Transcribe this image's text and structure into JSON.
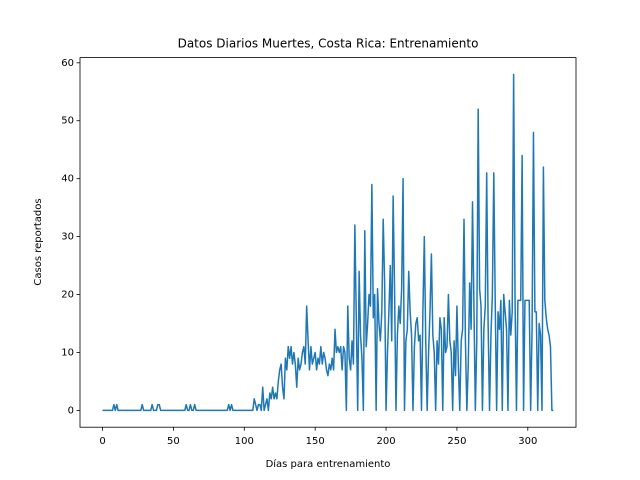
{
  "chart_data": {
    "type": "line",
    "title": "Datos Diarios Muertes, Costa Rica: Entrenamiento",
    "x_label": "Días para entrenamiento",
    "y_label": "Casos reportados",
    "color": "#1f77b4",
    "xlim": [
      -15.9,
      334.0
    ],
    "ylim": [
      -2.9,
      60.9
    ],
    "xticks": [
      0,
      50,
      100,
      150,
      200,
      250,
      300
    ],
    "yticks": [
      0,
      10,
      20,
      30,
      40,
      50,
      60
    ],
    "x": [
      0,
      1,
      2,
      3,
      4,
      5,
      6,
      7,
      8,
      9,
      10,
      11,
      12,
      13,
      14,
      15,
      16,
      17,
      18,
      19,
      20,
      21,
      22,
      23,
      24,
      25,
      26,
      27,
      28,
      29,
      30,
      31,
      32,
      33,
      34,
      35,
      36,
      37,
      38,
      39,
      40,
      41,
      42,
      43,
      44,
      45,
      46,
      47,
      48,
      49,
      50,
      51,
      52,
      53,
      54,
      55,
      56,
      57,
      58,
      59,
      60,
      61,
      62,
      63,
      64,
      65,
      66,
      67,
      68,
      69,
      70,
      71,
      72,
      73,
      74,
      75,
      76,
      77,
      78,
      79,
      80,
      81,
      82,
      83,
      84,
      85,
      86,
      87,
      88,
      89,
      90,
      91,
      92,
      93,
      94,
      95,
      96,
      97,
      98,
      99,
      100,
      101,
      102,
      103,
      104,
      105,
      106,
      107,
      108,
      109,
      110,
      111,
      112,
      113,
      114,
      115,
      116,
      117,
      118,
      119,
      120,
      121,
      122,
      123,
      124,
      125,
      126,
      127,
      128,
      129,
      130,
      131,
      132,
      133,
      134,
      135,
      136,
      137,
      138,
      139,
      140,
      141,
      142,
      143,
      144,
      145,
      146,
      147,
      148,
      149,
      150,
      151,
      152,
      153,
      154,
      155,
      156,
      157,
      158,
      159,
      160,
      161,
      162,
      163,
      164,
      165,
      166,
      167,
      168,
      169,
      170,
      171,
      172,
      173,
      174,
      175,
      176,
      177,
      178,
      179,
      180,
      181,
      182,
      183,
      184,
      185,
      186,
      187,
      188,
      189,
      190,
      191,
      192,
      193,
      194,
      195,
      196,
      197,
      198,
      199,
      200,
      201,
      202,
      203,
      204,
      205,
      206,
      207,
      208,
      209,
      210,
      211,
      212,
      213,
      214,
      215,
      216,
      217,
      218,
      219,
      220,
      221,
      222,
      223,
      224,
      225,
      226,
      227,
      228,
      229,
      230,
      231,
      232,
      233,
      234,
      235,
      236,
      237,
      238,
      239,
      240,
      241,
      242,
      243,
      244,
      245,
      246,
      247,
      248,
      249,
      250,
      251,
      252,
      253,
      254,
      255,
      256,
      257,
      258,
      259,
      260,
      261,
      262,
      263,
      264,
      265,
      266,
      267,
      268,
      269,
      270,
      271,
      272,
      273,
      274,
      275,
      276,
      277,
      278,
      279,
      280,
      281,
      282,
      283,
      284,
      285,
      286,
      287,
      288,
      289,
      290,
      291,
      292,
      293,
      294,
      295,
      296,
      297,
      298,
      299,
      300,
      301,
      302,
      303,
      304,
      305,
      306,
      307,
      308,
      309,
      310,
      311,
      312,
      313,
      314,
      315,
      316,
      317,
      318
    ],
    "values": [
      0,
      0,
      0,
      0,
      0,
      0,
      0,
      0,
      1,
      0,
      1,
      0,
      0,
      0,
      0,
      0,
      0,
      0,
      0,
      0,
      0,
      0,
      0,
      0,
      0,
      0,
      0,
      0,
      1,
      0,
      0,
      0,
      0,
      0,
      0,
      1,
      0,
      0,
      0,
      1,
      1,
      0,
      0,
      0,
      0,
      0,
      0,
      0,
      0,
      0,
      0,
      0,
      0,
      0,
      0,
      0,
      0,
      0,
      0,
      1,
      0,
      0,
      1,
      0,
      0,
      1,
      0,
      0,
      0,
      0,
      0,
      0,
      0,
      0,
      0,
      0,
      0,
      0,
      0,
      0,
      0,
      0,
      0,
      0,
      0,
      0,
      0,
      0,
      0,
      1,
      0,
      1,
      0,
      0,
      0,
      0,
      0,
      0,
      0,
      0,
      0,
      0,
      0,
      0,
      0,
      0,
      0,
      2,
      1,
      0,
      1,
      1,
      0,
      4,
      0,
      1,
      2,
      0,
      3,
      2,
      4,
      2,
      3,
      2,
      5,
      7,
      8,
      4,
      2,
      9,
      7,
      11,
      9,
      11,
      8,
      10,
      8,
      4,
      9,
      7,
      8,
      10,
      11,
      8,
      18,
      12,
      7,
      11,
      8,
      9,
      10,
      7,
      9,
      8,
      11,
      8,
      10,
      9,
      7,
      6,
      8,
      7,
      9,
      7,
      14,
      10,
      11,
      10,
      11,
      7,
      11,
      10,
      0,
      18,
      9,
      7,
      12,
      8,
      32,
      16,
      0,
      24,
      13,
      9,
      0,
      31,
      11,
      15,
      20,
      18,
      39,
      16,
      20,
      0,
      21,
      15,
      12,
      17,
      33,
      22,
      0,
      10,
      17,
      25,
      12,
      37,
      21,
      0,
      13,
      18,
      15,
      21,
      40,
      0,
      12,
      14,
      24,
      17,
      13,
      0,
      11,
      15,
      16,
      12,
      13,
      0,
      17,
      30,
      12,
      0,
      10,
      17,
      27,
      13,
      10,
      0,
      12,
      8,
      16,
      14,
      0,
      16,
      10,
      11,
      20,
      12,
      10,
      0,
      12,
      6,
      18,
      8,
      0,
      12,
      14,
      33,
      12,
      0,
      8,
      22,
      14,
      36,
      18,
      0,
      12,
      52,
      21,
      18,
      0,
      14,
      18,
      41,
      15,
      0,
      13,
      20,
      41,
      19,
      0,
      17,
      14,
      19,
      0,
      20,
      17,
      14,
      0,
      19,
      13,
      17,
      58,
      19,
      0,
      19,
      19,
      19,
      44,
      0,
      19,
      19,
      19,
      19,
      0,
      14,
      48,
      17,
      17,
      0,
      15,
      13,
      0,
      42,
      19,
      16,
      14,
      13,
      11,
      0,
      0
    ]
  }
}
